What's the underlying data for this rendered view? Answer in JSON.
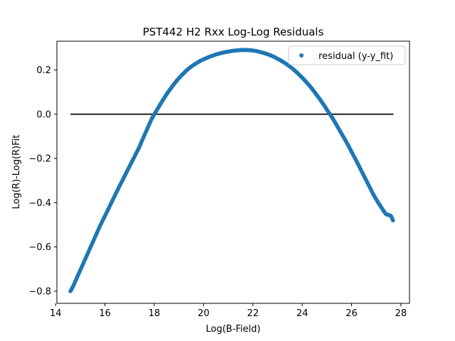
{
  "chart_data": {
    "type": "scatter",
    "title": "PST442 H2 Rxx Log-Log Residuals",
    "xlabel": "Log(B-Field)",
    "ylabel": "Log(R)-Log(R)Fit",
    "xlim": [
      14.05,
      28.35
    ],
    "ylim": [
      -0.855,
      0.33
    ],
    "xticks": [
      "14",
      "16",
      "18",
      "20",
      "22",
      "24",
      "26",
      "28"
    ],
    "yticks": [
      "−0.8",
      "−0.6",
      "−0.4",
      "−0.2",
      "0.0",
      "0.2"
    ],
    "grid": false,
    "legend": {
      "placement": "top-right",
      "entries": [
        "residual (y-y_fit)"
      ]
    },
    "colors": {
      "residual": "#1f77b4",
      "zero_line": "#222222"
    },
    "series": [
      {
        "name": "residual (y-y_fit)",
        "points": [
          [
            14.6,
            -0.8
          ],
          [
            14.7,
            -0.78
          ],
          [
            14.8,
            -0.755
          ],
          [
            14.9,
            -0.73
          ],
          [
            15.0,
            -0.705
          ],
          [
            15.1,
            -0.68
          ],
          [
            15.2,
            -0.655
          ],
          [
            15.3,
            -0.63
          ],
          [
            15.4,
            -0.605
          ],
          [
            15.5,
            -0.58
          ],
          [
            15.6,
            -0.555
          ],
          [
            15.7,
            -0.53
          ],
          [
            15.8,
            -0.505
          ],
          [
            15.9,
            -0.482
          ],
          [
            16.0,
            -0.46
          ],
          [
            16.1,
            -0.437
          ],
          [
            16.2,
            -0.414
          ],
          [
            16.3,
            -0.391
          ],
          [
            16.4,
            -0.368
          ],
          [
            16.5,
            -0.345
          ],
          [
            16.6,
            -0.323
          ],
          [
            16.7,
            -0.301
          ],
          [
            16.8,
            -0.279
          ],
          [
            16.9,
            -0.257
          ],
          [
            17.0,
            -0.235
          ],
          [
            17.1,
            -0.213
          ],
          [
            17.2,
            -0.191
          ],
          [
            17.3,
            -0.169
          ],
          [
            17.4,
            -0.147
          ],
          [
            17.5,
            -0.12
          ],
          [
            17.6,
            -0.095
          ],
          [
            17.7,
            -0.07
          ],
          [
            17.8,
            -0.045
          ],
          [
            17.9,
            -0.02
          ],
          [
            18.0,
            0.0
          ],
          [
            18.1,
            0.018
          ],
          [
            18.2,
            0.037
          ],
          [
            18.3,
            0.055
          ],
          [
            18.4,
            0.073
          ],
          [
            18.5,
            0.09
          ],
          [
            18.6,
            0.106
          ],
          [
            18.7,
            0.121
          ],
          [
            18.8,
            0.136
          ],
          [
            18.9,
            0.15
          ],
          [
            19.0,
            0.163
          ],
          [
            19.1,
            0.175
          ],
          [
            19.2,
            0.186
          ],
          [
            19.3,
            0.197
          ],
          [
            19.4,
            0.207
          ],
          [
            19.5,
            0.215
          ],
          [
            19.6,
            0.223
          ],
          [
            19.7,
            0.23
          ],
          [
            19.8,
            0.237
          ],
          [
            19.9,
            0.243
          ],
          [
            20.0,
            0.248
          ],
          [
            20.1,
            0.253
          ],
          [
            20.2,
            0.258
          ],
          [
            20.3,
            0.262
          ],
          [
            20.4,
            0.266
          ],
          [
            20.5,
            0.27
          ],
          [
            20.6,
            0.273
          ],
          [
            20.7,
            0.276
          ],
          [
            20.8,
            0.279
          ],
          [
            20.9,
            0.281
          ],
          [
            21.0,
            0.283
          ],
          [
            21.1,
            0.285
          ],
          [
            21.2,
            0.287
          ],
          [
            21.3,
            0.288
          ],
          [
            21.4,
            0.289
          ],
          [
            21.5,
            0.29
          ],
          [
            21.6,
            0.29
          ],
          [
            21.7,
            0.29
          ],
          [
            21.8,
            0.29
          ],
          [
            21.9,
            0.289
          ],
          [
            22.0,
            0.288
          ],
          [
            22.1,
            0.286
          ],
          [
            22.2,
            0.284
          ],
          [
            22.3,
            0.281
          ],
          [
            22.4,
            0.278
          ],
          [
            22.5,
            0.275
          ],
          [
            22.6,
            0.271
          ],
          [
            22.7,
            0.267
          ],
          [
            22.8,
            0.262
          ],
          [
            22.9,
            0.257
          ],
          [
            23.0,
            0.25
          ],
          [
            23.1,
            0.245
          ],
          [
            23.2,
            0.238
          ],
          [
            23.3,
            0.231
          ],
          [
            23.4,
            0.224
          ],
          [
            23.5,
            0.215
          ],
          [
            23.6,
            0.207
          ],
          [
            23.7,
            0.197
          ],
          [
            23.8,
            0.187
          ],
          [
            23.9,
            0.176
          ],
          [
            24.0,
            0.165
          ],
          [
            24.1,
            0.153
          ],
          [
            24.2,
            0.141
          ],
          [
            24.3,
            0.128
          ],
          [
            24.4,
            0.115
          ],
          [
            24.5,
            0.1
          ],
          [
            24.6,
            0.085
          ],
          [
            24.7,
            0.07
          ],
          [
            24.8,
            0.054
          ],
          [
            24.9,
            0.038
          ],
          [
            25.0,
            0.02
          ],
          [
            25.1,
            0.004
          ],
          [
            25.2,
            -0.013
          ],
          [
            25.3,
            -0.031
          ],
          [
            25.4,
            -0.05
          ],
          [
            25.5,
            -0.07
          ],
          [
            25.6,
            -0.089
          ],
          [
            25.7,
            -0.108
          ],
          [
            25.8,
            -0.128
          ],
          [
            25.9,
            -0.148
          ],
          [
            26.0,
            -0.17
          ],
          [
            26.1,
            -0.191
          ],
          [
            26.2,
            -0.212
          ],
          [
            26.3,
            -0.234
          ],
          [
            26.4,
            -0.256
          ],
          [
            26.5,
            -0.278
          ],
          [
            26.6,
            -0.3
          ],
          [
            26.7,
            -0.322
          ],
          [
            26.8,
            -0.344
          ],
          [
            26.9,
            -0.366
          ],
          [
            27.0,
            -0.385
          ],
          [
            27.1,
            -0.403
          ],
          [
            27.2,
            -0.42
          ],
          [
            27.3,
            -0.437
          ],
          [
            27.4,
            -0.452
          ],
          [
            27.5,
            -0.455
          ],
          [
            27.6,
            -0.46
          ],
          [
            27.68,
            -0.48
          ]
        ]
      },
      {
        "name": "",
        "kind": "line",
        "points": [
          [
            14.6,
            0.0
          ],
          [
            27.7,
            0.0
          ]
        ]
      }
    ]
  }
}
